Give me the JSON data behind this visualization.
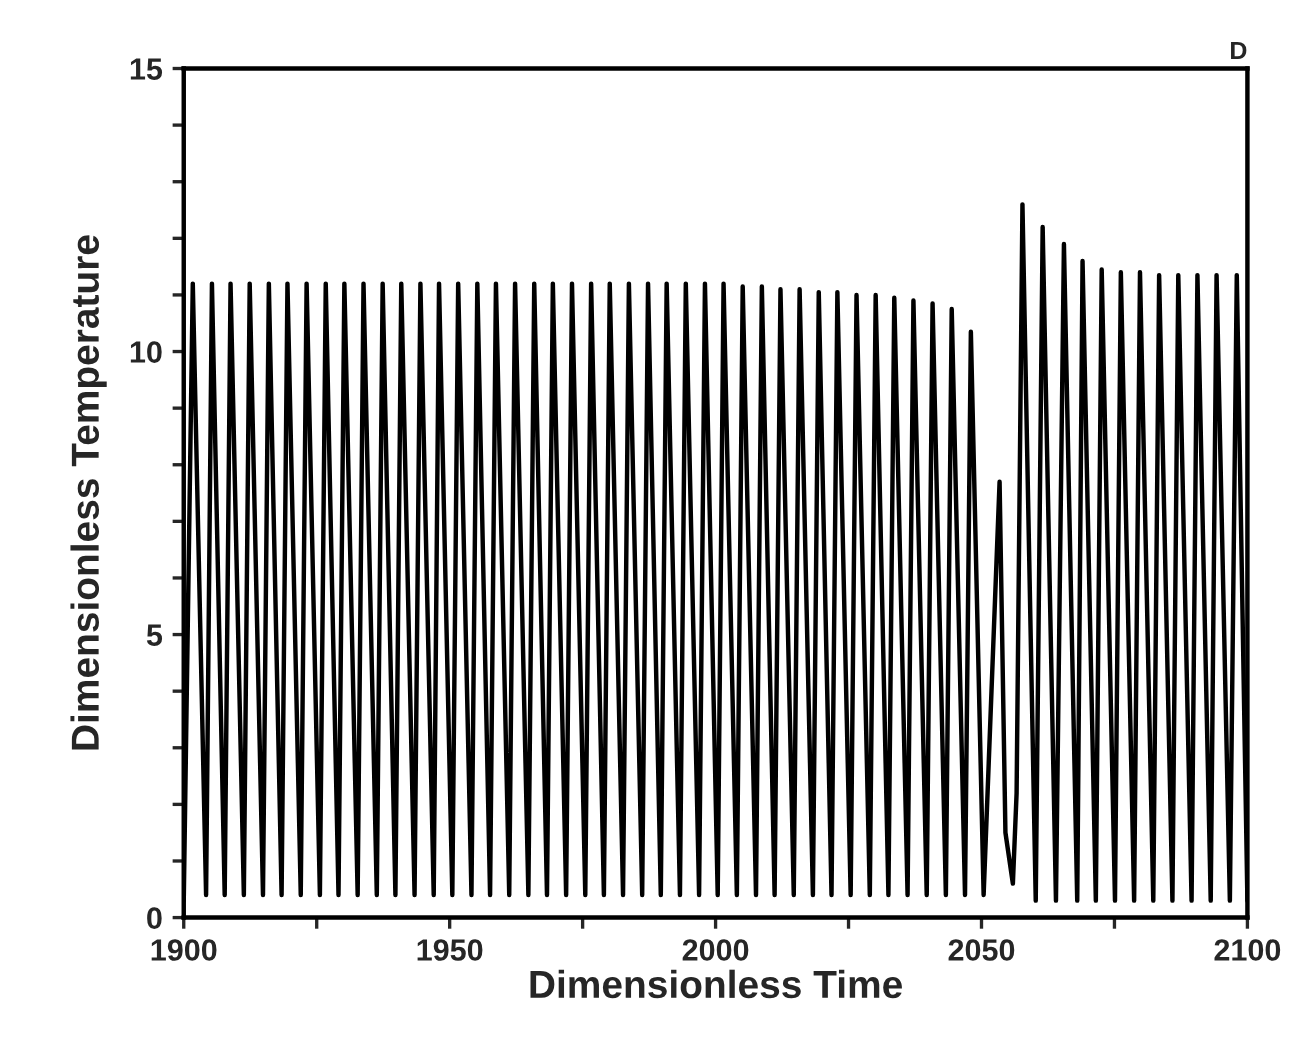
{
  "chart_data": {
    "type": "line",
    "xlabel": "Dimensionless Time",
    "ylabel": "Dimensionless Temperature",
    "annotations": [
      "D"
    ],
    "xlim": [
      1900,
      2100
    ],
    "ylim": [
      0,
      15
    ],
    "xticks": [
      1900,
      {
        "value": 1925,
        "label": null
      },
      1950,
      {
        "value": 1975,
        "label": null
      },
      2000,
      {
        "value": 2025,
        "label": null
      },
      2050,
      {
        "value": 2075,
        "label": null
      },
      2100
    ],
    "yticks": [
      0,
      {
        "value": 1,
        "label": null
      },
      {
        "value": 2,
        "label": null
      },
      {
        "value": 3,
        "label": null
      },
      {
        "value": 4,
        "label": null
      },
      5,
      {
        "value": 6,
        "label": null
      },
      {
        "value": 7,
        "label": null
      },
      {
        "value": 8,
        "label": null
      },
      {
        "value": 9,
        "label": null
      },
      10,
      {
        "value": 11,
        "label": null
      },
      {
        "value": 12,
        "label": null
      },
      {
        "value": 13,
        "label": null
      },
      {
        "value": 14,
        "label": null
      },
      15
    ],
    "grid": false,
    "marker": "none",
    "line_style": "solid",
    "series": [
      {
        "color": "#000000",
        "x": [
          1900.0,
          1901.7,
          1904.2,
          1905.3,
          1907.7,
          1908.8,
          1911.3,
          1912.4,
          1914.9,
          1916.0,
          1918.4,
          1919.5,
          1922.0,
          1923.1,
          1925.6,
          1926.7,
          1929.1,
          1930.2,
          1932.7,
          1933.8,
          1936.3,
          1937.4,
          1939.8,
          1940.9,
          1943.4,
          1944.5,
          1947.0,
          1948.0,
          1950.5,
          1951.6,
          1954.1,
          1955.2,
          1957.6,
          1958.7,
          1961.2,
          1962.3,
          1964.8,
          1965.9,
          1968.3,
          1969.4,
          1971.9,
          1973.0,
          1975.5,
          1976.6,
          1979.0,
          1980.1,
          1982.6,
          1983.7,
          1986.2,
          1987.3,
          1989.7,
          1990.8,
          1993.3,
          1994.4,
          1996.9,
          1998.0,
          2000.4,
          2001.5,
          2004.0,
          2005.1,
          2007.6,
          2008.7,
          2011.1,
          2012.2,
          2014.7,
          2015.8,
          2018.3,
          2019.4,
          2021.8,
          2022.9,
          2025.4,
          2026.5,
          2029.0,
          2030.1,
          2032.5,
          2033.6,
          2036.1,
          2037.2,
          2039.7,
          2040.8,
          2043.3,
          2044.4,
          2046.9,
          2048.0,
          2050.4,
          2053.4,
          2054.5,
          2055.9,
          2056.6,
          2057.7,
          2060.2,
          2061.5,
          2064.0,
          2065.5,
          2068.0,
          2069.0,
          2071.5,
          2072.6,
          2075.1,
          2076.2,
          2078.7,
          2079.8,
          2082.3,
          2083.4,
          2085.9,
          2087.0,
          2089.5,
          2090.6,
          2093.1,
          2094.2,
          2096.7,
          2098.0,
          2100.0
        ],
        "values": [
          0.3,
          11.2,
          0.4,
          11.2,
          0.4,
          11.2,
          0.4,
          11.2,
          0.4,
          11.2,
          0.4,
          11.2,
          0.4,
          11.2,
          0.4,
          11.2,
          0.4,
          11.2,
          0.4,
          11.2,
          0.4,
          11.2,
          0.4,
          11.2,
          0.4,
          11.2,
          0.4,
          11.2,
          0.4,
          11.2,
          0.4,
          11.2,
          0.4,
          11.2,
          0.4,
          11.2,
          0.4,
          11.2,
          0.4,
          11.2,
          0.4,
          11.2,
          0.4,
          11.2,
          0.4,
          11.2,
          0.4,
          11.2,
          0.4,
          11.2,
          0.4,
          11.2,
          0.4,
          11.2,
          0.4,
          11.2,
          0.4,
          11.2,
          0.4,
          11.15,
          0.4,
          11.15,
          0.4,
          11.1,
          0.4,
          11.1,
          0.4,
          11.05,
          0.4,
          11.05,
          0.4,
          11.0,
          0.4,
          11.0,
          0.4,
          10.95,
          0.4,
          10.9,
          0.4,
          10.85,
          0.4,
          10.75,
          0.4,
          10.35,
          0.4,
          7.7,
          1.5,
          0.6,
          2.2,
          12.6,
          0.3,
          12.2,
          0.3,
          11.9,
          0.3,
          11.6,
          0.3,
          11.45,
          0.3,
          11.4,
          0.3,
          11.4,
          0.3,
          11.35,
          0.3,
          11.35,
          0.3,
          11.35,
          0.3,
          11.35,
          0.3,
          11.35,
          0.3
        ]
      }
    ]
  }
}
